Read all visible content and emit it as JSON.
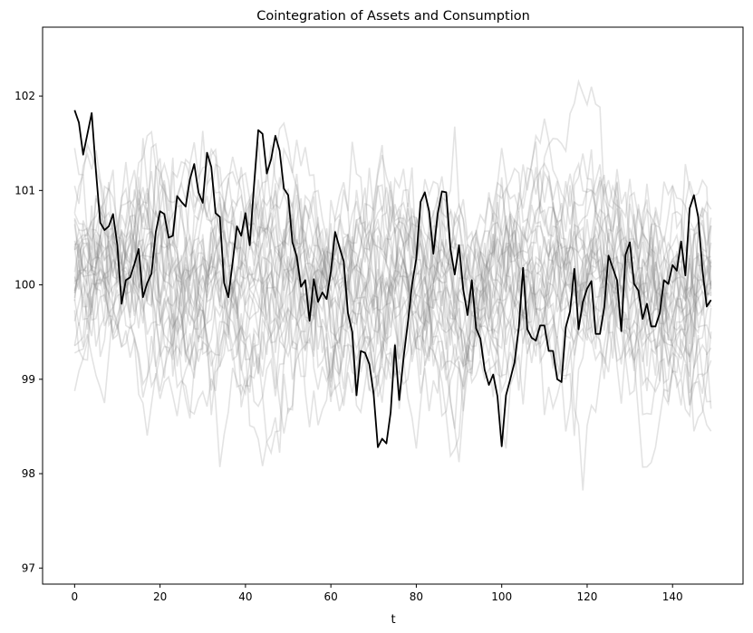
{
  "chart_data": {
    "type": "line",
    "title": "Cointegration of Assets and Consumption",
    "xlabel": "t",
    "ylabel": "",
    "xlim": [
      -7.5,
      156.5
    ],
    "ylim": [
      96.83,
      102.73
    ],
    "x_ticks": [
      0,
      20,
      40,
      60,
      80,
      100,
      120,
      140
    ],
    "y_ticks": [
      97,
      98,
      99,
      100,
      101,
      102
    ],
    "grid": false,
    "legend": "none",
    "highlight_color": "#000000",
    "background_series_color": "#808080",
    "background_series_count": 30,
    "background_series_seed": 12345,
    "highlight_series": {
      "x": [
        0,
        1,
        2,
        3,
        4,
        5,
        6,
        7,
        8,
        9,
        10,
        11,
        12,
        13,
        14,
        15,
        16,
        17,
        18,
        19,
        20,
        21,
        22,
        23,
        24,
        25,
        26,
        27,
        28,
        29,
        30,
        31,
        32,
        33,
        34,
        35,
        36,
        37,
        38,
        39,
        40,
        41,
        42,
        43,
        44,
        45,
        46,
        47,
        48,
        49,
        50,
        51,
        52,
        53,
        54,
        55,
        56,
        57,
        58,
        59,
        60,
        61,
        62,
        63,
        64,
        65,
        66,
        67,
        68,
        69,
        70,
        71,
        72,
        73,
        74,
        75,
        76,
        77,
        78,
        79,
        80,
        81,
        82,
        83,
        84,
        85,
        86,
        87,
        88,
        89,
        90,
        91,
        92,
        93,
        94,
        95,
        96,
        97,
        98,
        99,
        100,
        101,
        102,
        103,
        104,
        105,
        106,
        107,
        108,
        109,
        110,
        111,
        112,
        113,
        114,
        115,
        116,
        117,
        118,
        119,
        120,
        121,
        122,
        123,
        124,
        125,
        126,
        127,
        128,
        129,
        130,
        131,
        132,
        133,
        134,
        135,
        136,
        137,
        138,
        139,
        140,
        141,
        142,
        143,
        144,
        145,
        146,
        147,
        148,
        149
      ],
      "values": [
        101.85,
        101.72,
        101.38,
        101.6,
        101.82,
        101.2,
        100.66,
        100.58,
        100.62,
        100.75,
        100.42,
        99.8,
        100.05,
        100.08,
        100.22,
        100.38,
        99.87,
        100.02,
        100.12,
        100.56,
        100.78,
        100.75,
        100.5,
        100.52,
        100.94,
        100.88,
        100.83,
        101.12,
        101.28,
        100.98,
        100.87,
        101.4,
        101.25,
        100.76,
        100.72,
        100.02,
        99.87,
        100.24,
        100.62,
        100.52,
        100.76,
        100.42,
        101.05,
        101.64,
        101.6,
        101.18,
        101.33,
        101.58,
        101.42,
        101.02,
        100.95,
        100.45,
        100.3,
        99.98,
        100.05,
        99.62,
        100.06,
        99.82,
        99.92,
        99.85,
        100.14,
        100.56,
        100.4,
        100.25,
        99.7,
        99.5,
        98.83,
        99.3,
        99.28,
        99.16,
        98.85,
        98.28,
        98.37,
        98.32,
        98.65,
        99.36,
        98.78,
        99.22,
        99.59,
        100.0,
        100.28,
        100.88,
        100.98,
        100.78,
        100.33,
        100.75,
        100.99,
        100.98,
        100.38,
        100.11,
        100.42,
        99.95,
        99.68,
        100.05,
        99.54,
        99.43,
        99.1,
        98.94,
        99.05,
        98.82,
        98.29,
        98.83,
        99.0,
        99.18,
        99.55,
        100.18,
        99.53,
        99.44,
        99.41,
        99.57,
        99.57,
        99.3,
        99.3,
        99.0,
        98.97,
        99.55,
        99.72,
        100.17,
        99.53,
        99.82,
        99.96,
        100.04,
        99.48,
        99.48,
        99.76,
        100.31,
        100.18,
        100.05,
        99.51,
        100.32,
        100.45,
        100.01,
        99.94,
        99.64,
        99.8,
        99.56,
        99.56,
        99.7,
        100.05,
        100.01,
        100.21,
        100.15,
        100.46,
        100.1,
        100.81,
        100.95,
        100.72,
        100.16,
        99.77,
        99.84
      ]
    }
  }
}
